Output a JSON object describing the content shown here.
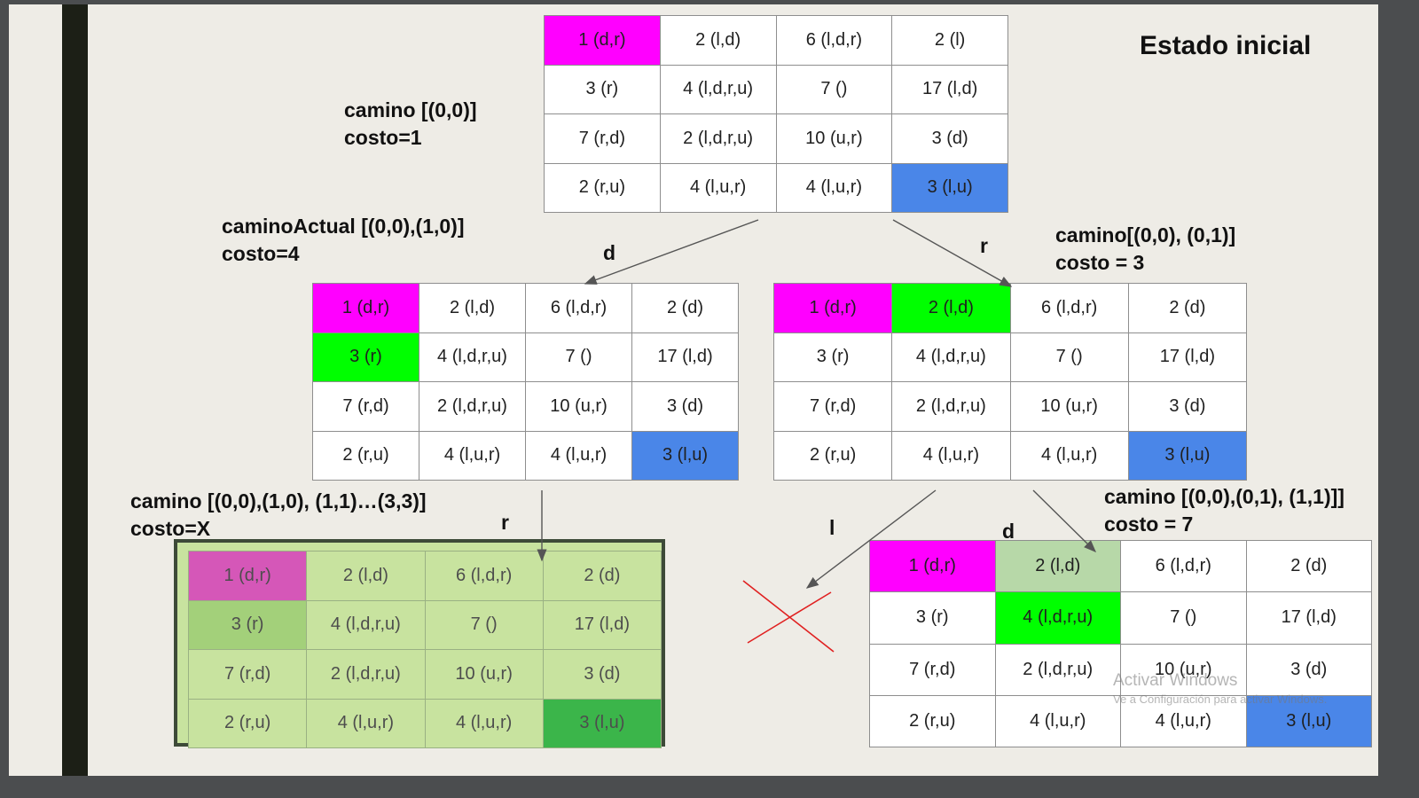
{
  "title": "Estado inicial",
  "colors": {
    "start": "#ff00ff",
    "start_dim": "#d557b8",
    "visited": "#00ff00",
    "visited_soft": "#b7d8a8",
    "visited_dim": "#a3d07a",
    "goal": "#4a86e8",
    "goal_dim": "#3bb54a",
    "cell": "#ffffff",
    "cell_dim": "#c8e39f",
    "fail_mark": "#e02020"
  },
  "nodes": {
    "root": {
      "label_line1": "camino [(0,0)]",
      "label_line2": "costo=1",
      "cells": [
        [
          "1 (d,r)",
          "2 (l,d)",
          "6 (l,d,r)",
          "2 (l)"
        ],
        [
          "3 (r)",
          "4 (l,d,r,u)",
          "7 ()",
          "17 (l,d)"
        ],
        [
          "7 (r,d)",
          "2 (l,d,r,u)",
          "10 (u,r)",
          "3 (d)"
        ],
        [
          "2 (r,u)",
          "4 (l,u,r)",
          "4 (l,u,r)",
          "3 (l,u)"
        ]
      ],
      "highlights": [
        {
          "cell": "0-0",
          "color": "start"
        },
        {
          "cell": "3-3",
          "color": "goal"
        }
      ]
    },
    "down": {
      "label_line1": "caminoActual [(0,0),(1,0)]",
      "label_line2": "costo=4",
      "move": "d",
      "cells": [
        [
          "1 (d,r)",
          "2 (l,d)",
          "6 (l,d,r)",
          "2 (d)"
        ],
        [
          "3 (r)",
          "4 (l,d,r,u)",
          "7 ()",
          "17 (l,d)"
        ],
        [
          "7 (r,d)",
          "2 (l,d,r,u)",
          "10 (u,r)",
          "3 (d)"
        ],
        [
          "2 (r,u)",
          "4 (l,u,r)",
          "4 (l,u,r)",
          "3 (l,u)"
        ]
      ],
      "highlights": [
        {
          "cell": "0-0",
          "color": "start"
        },
        {
          "cell": "1-0",
          "color": "visited"
        },
        {
          "cell": "3-3",
          "color": "goal"
        }
      ]
    },
    "right": {
      "label_line1": "camino[(0,0), (0,1)]",
      "label_line2": "costo = 3",
      "move": "r",
      "cells": [
        [
          "1 (d,r)",
          "2 (l,d)",
          "6 (l,d,r)",
          "2 (d)"
        ],
        [
          "3 (r)",
          "4 (l,d,r,u)",
          "7 ()",
          "17 (l,d)"
        ],
        [
          "7 (r,d)",
          "2 (l,d,r,u)",
          "10 (u,r)",
          "3 (d)"
        ],
        [
          "2 (r,u)",
          "4 (l,u,r)",
          "4 (l,u,r)",
          "3 (l,u)"
        ]
      ],
      "highlights": [
        {
          "cell": "0-0",
          "color": "start"
        },
        {
          "cell": "0-1",
          "color": "visited"
        },
        {
          "cell": "3-3",
          "color": "goal"
        }
      ]
    },
    "final": {
      "label_line1": "camino [(0,0),(1,0), (1,1)…(3,3)]",
      "label_line2": "costo=X",
      "move": "r",
      "cells": [
        [
          "1 (d,r)",
          "2 (l,d)",
          "6 (l,d,r)",
          "2 (d)"
        ],
        [
          "3 (r)",
          "4 (l,d,r,u)",
          "7 ()",
          "17 (l,d)"
        ],
        [
          "7 (r,d)",
          "2 (l,d,r,u)",
          "10 (u,r)",
          "3 (d)"
        ],
        [
          "2 (r,u)",
          "4 (l,u,r)",
          "4 (l,u,r)",
          "3 (l,u)"
        ]
      ],
      "highlights": [
        {
          "cell": "0-0",
          "color": "start_dim"
        },
        {
          "cell": "1-0",
          "color": "visited_dim"
        },
        {
          "cell": "3-3",
          "color": "goal_dim"
        }
      ]
    },
    "left_dead": {
      "move": "l"
    },
    "down_right": {
      "label_line1": "camino [(0,0),(0,1), (1,1)]]",
      "label_line2": "costo = 7",
      "move": "d",
      "cells": [
        [
          "1 (d,r)",
          "2 (l,d)",
          "6 (l,d,r)",
          "2 (d)"
        ],
        [
          "3 (r)",
          "4 (l,d,r,u)",
          "7 ()",
          "17 (l,d)"
        ],
        [
          "7 (r,d)",
          "2 (l,d,r,u)",
          "10 (u,r)",
          "3 (d)"
        ],
        [
          "2 (r,u)",
          "4 (l,u,r)",
          "4 (l,u,r)",
          "3 (l,u)"
        ]
      ],
      "highlights": [
        {
          "cell": "0-0",
          "color": "start"
        },
        {
          "cell": "0-1",
          "color": "visited_soft"
        },
        {
          "cell": "1-1",
          "color": "visited"
        },
        {
          "cell": "3-3",
          "color": "goal"
        }
      ]
    }
  },
  "watermark": {
    "line1": "Activar Windows",
    "line2": "Ve a Configuración para activar Windows."
  }
}
